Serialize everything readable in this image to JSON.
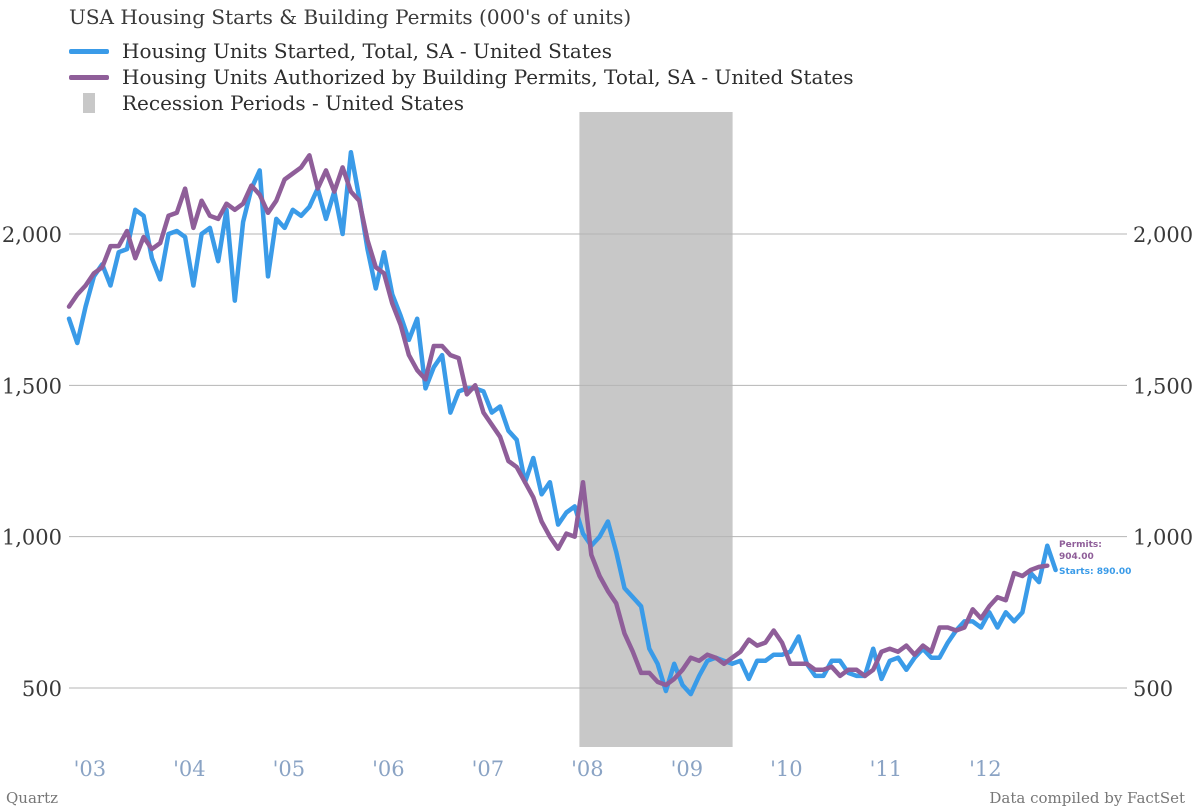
{
  "title": "USA Housing Starts & Building Permits (000's of units)",
  "source_left": "Quartz",
  "source_right": "Data compiled by FactSet",
  "legend": [
    {
      "label": "Housing Units Started, Total, SA - United States",
      "color": "#3a9be8",
      "shape": "line"
    },
    {
      "label": "Housing Units Authorized by Building Permits, Total, SA - United States",
      "color": "#8f5e99",
      "shape": "line"
    },
    {
      "label": "Recession Periods - United States",
      "color": "#c8c8c8",
      "shape": "rect"
    }
  ],
  "annotations": {
    "permits_label": "Permits:",
    "permits_value": "904.00",
    "starts_label": "Starts: 890.00",
    "permits_color": "#8f5e99",
    "starts_color": "#3a9be8"
  },
  "chart_data": {
    "type": "line",
    "title": "USA Housing Starts & Building Permits (000's of units)",
    "xlabel": "",
    "ylabel": "",
    "x_range": [
      2002.79,
      2012.62
    ],
    "ylim": [
      300,
      2450
    ],
    "y_ticks": [
      500,
      1000,
      1500,
      2000
    ],
    "y_tick_labels": [
      "500",
      "1,000",
      "1,500",
      "2,000"
    ],
    "x_ticks": [
      2003,
      2004,
      2005,
      2006,
      2007,
      2008,
      2009,
      2010,
      2011,
      2012
    ],
    "x_tick_labels": [
      "'03",
      "'04",
      "'05",
      "'06",
      "'07",
      "'08",
      "'09",
      "'10",
      "'11",
      "'12"
    ],
    "grid": "horizontal",
    "legend_position": "top-left",
    "recession": {
      "start": 2007.92,
      "end": 2009.46,
      "label": "Recession Periods - United States",
      "color": "#c8c8c8"
    },
    "series": [
      {
        "name": "Housing Units Started, Total, SA - United States",
        "color": "#3a9be8",
        "x_start": 2002.79,
        "step": 0.08333,
        "values": [
          1720,
          1640,
          1760,
          1860,
          1900,
          1830,
          1940,
          1950,
          2080,
          2060,
          1920,
          1850,
          2000,
          2010,
          1990,
          1830,
          2000,
          2020,
          1910,
          2080,
          1780,
          2040,
          2150,
          2210,
          1860,
          2050,
          2020,
          2080,
          2060,
          2090,
          2150,
          2050,
          2140,
          2000,
          2270,
          2120,
          1950,
          1820,
          1940,
          1800,
          1730,
          1650,
          1720,
          1490,
          1560,
          1600,
          1410,
          1480,
          1490,
          1490,
          1480,
          1410,
          1430,
          1350,
          1320,
          1180,
          1260,
          1140,
          1180,
          1040,
          1080,
          1100,
          1010,
          970,
          1000,
          1050,
          950,
          830,
          800,
          770,
          630,
          580,
          490,
          580,
          510,
          480,
          540,
          590,
          600,
          590,
          580,
          590,
          530,
          590,
          590,
          610,
          610,
          620,
          670,
          580,
          540,
          540,
          590,
          590,
          550,
          540,
          540,
          630,
          530,
          590,
          600,
          560,
          600,
          630,
          600,
          600,
          650,
          690,
          720,
          720,
          700,
          750,
          700,
          750,
          720,
          750,
          880,
          850,
          970,
          890
        ]
      },
      {
        "name": "Housing Units Authorized by Building Permits, Total, SA - United States",
        "color": "#8f5e99",
        "x_start": 2002.79,
        "step": 0.08333,
        "values": [
          1760,
          1800,
          1830,
          1870,
          1890,
          1960,
          1960,
          2010,
          1920,
          1990,
          1950,
          1970,
          2060,
          2070,
          2150,
          2020,
          2110,
          2060,
          2050,
          2100,
          2080,
          2100,
          2160,
          2130,
          2070,
          2110,
          2180,
          2200,
          2220,
          2260,
          2150,
          2210,
          2140,
          2220,
          2140,
          2110,
          1980,
          1890,
          1870,
          1770,
          1700,
          1600,
          1550,
          1520,
          1630,
          1630,
          1600,
          1590,
          1470,
          1500,
          1410,
          1370,
          1330,
          1250,
          1230,
          1180,
          1130,
          1050,
          1000,
          960,
          1010,
          1000,
          1180,
          940,
          870,
          820,
          780,
          680,
          620,
          550,
          550,
          520,
          510,
          530,
          560,
          600,
          590,
          610,
          600,
          580,
          600,
          620,
          660,
          640,
          650,
          690,
          650,
          580,
          580,
          580,
          560,
          560,
          570,
          540,
          560,
          560,
          540,
          560,
          620,
          630,
          620,
          640,
          610,
          640,
          620,
          700,
          700,
          690,
          700,
          760,
          730,
          770,
          800,
          790,
          880,
          870,
          890,
          900,
          904
        ]
      }
    ]
  }
}
